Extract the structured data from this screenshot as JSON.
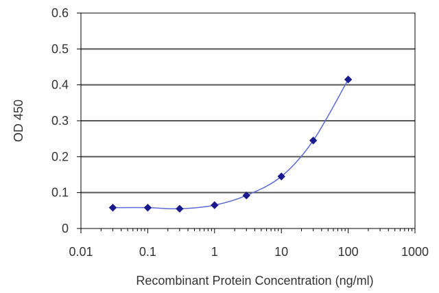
{
  "chart_data": {
    "type": "line",
    "xlabel": "Recombinant Protein Concentration (ng/ml)",
    "ylabel": "OD 450",
    "x_scale": "log",
    "xlim": [
      0.01,
      1000
    ],
    "ylim": [
      0,
      0.6
    ],
    "x_ticks": [
      0.01,
      0.1,
      1,
      10,
      100,
      1000
    ],
    "x_tick_labels": [
      "0.01",
      "0.1",
      "1",
      "10",
      "100",
      "1000"
    ],
    "y_ticks": [
      0,
      0.1,
      0.2,
      0.3,
      0.4,
      0.5,
      0.6
    ],
    "y_tick_labels": [
      "0",
      "0.1",
      "0.2",
      "0.3",
      "0.4",
      "0.5",
      "0.6"
    ],
    "grid": "horizontal",
    "series": [
      {
        "color": "#1a1a8c",
        "x": [
          0.03,
          0.1,
          0.3,
          1,
          3,
          10,
          30,
          100
        ],
        "y": [
          0.058,
          0.058,
          0.055,
          0.065,
          0.092,
          0.145,
          0.245,
          0.415
        ]
      }
    ]
  }
}
